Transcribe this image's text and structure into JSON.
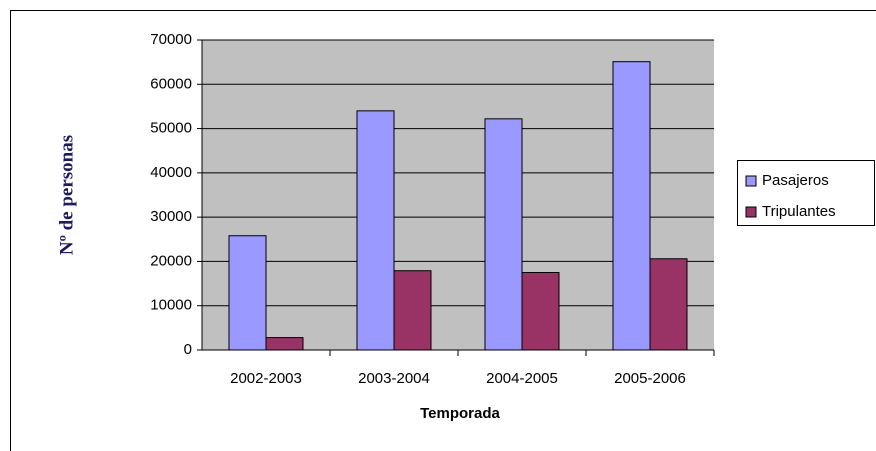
{
  "chart_data": {
    "type": "bar",
    "x_label": "Temporada",
    "y_label": "Nº de personas",
    "categories": [
      "2002-2003",
      "2003-2004",
      "2004-2005",
      "2005-2006"
    ],
    "series": [
      {
        "name": "Pasajeros",
        "color": "#9999ff",
        "values": [
          25800,
          54000,
          52200,
          65100
        ]
      },
      {
        "name": "Tripulantes",
        "color": "#993366",
        "values": [
          2800,
          17900,
          17500,
          20600
        ]
      }
    ],
    "ylim": [
      0,
      70000
    ],
    "yticks": [
      0,
      10000,
      20000,
      30000,
      40000,
      50000,
      60000,
      70000
    ],
    "grid": true,
    "legend": "right"
  }
}
